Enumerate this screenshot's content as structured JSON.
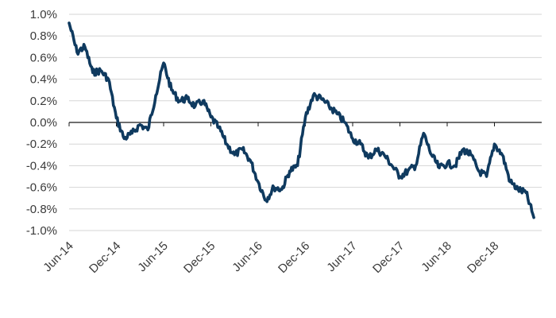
{
  "chart_data": {
    "type": "line",
    "title": "",
    "xlabel": "",
    "ylabel": "",
    "ylim": [
      -0.01,
      0.01
    ],
    "grid": true,
    "legend": "none",
    "y_tick_values": [
      0.01,
      0.008,
      0.006,
      0.004,
      0.002,
      0.0,
      -0.002,
      -0.004,
      -0.006,
      -0.008,
      -0.01
    ],
    "y_tick_labels": [
      "1.0%",
      "0.8%",
      "0.6%",
      "0.4%",
      "0.2%",
      "0.0%",
      "-0.2%",
      "-0.4%",
      "-0.6%",
      "-0.8%",
      "-1.0%"
    ],
    "x_tick_values": [
      "2014-06",
      "2014-12",
      "2015-06",
      "2015-12",
      "2016-06",
      "2016-12",
      "2017-06",
      "2017-12",
      "2018-06",
      "2018-12"
    ],
    "x_tick_labels": [
      "Jun-14",
      "Dec-14",
      "Jun-15",
      "Dec-15",
      "Jun-16",
      "Dec-16",
      "Jun-17",
      "Dec-17",
      "Jun-18",
      "Dec-18"
    ],
    "x_range": [
      "2014-06",
      "2019-06"
    ],
    "colors": {
      "series": "#0f3a5f",
      "grid": "#d6d6d6",
      "axis": "#1a1a1a"
    },
    "series": [
      {
        "x": [
          "2014-06",
          "2014-07",
          "2014-08",
          "2014-09",
          "2014-10",
          "2014-11",
          "2014-12",
          "2015-01",
          "2015-02",
          "2015-03",
          "2015-04",
          "2015-05",
          "2015-06",
          "2015-07",
          "2015-08",
          "2015-09",
          "2015-10",
          "2015-11",
          "2015-12",
          "2016-01",
          "2016-02",
          "2016-03",
          "2016-04",
          "2016-05",
          "2016-06",
          "2016-07",
          "2016-08",
          "2016-09",
          "2016-10",
          "2016-11",
          "2016-12",
          "2017-01",
          "2017-02",
          "2017-03",
          "2017-04",
          "2017-05",
          "2017-06",
          "2017-07",
          "2017-08",
          "2017-09",
          "2017-10",
          "2017-11",
          "2017-12",
          "2018-01",
          "2018-02",
          "2018-03",
          "2018-04",
          "2018-05",
          "2018-06",
          "2018-07",
          "2018-08",
          "2018-09",
          "2018-10",
          "2018-11",
          "2018-12",
          "2019-01",
          "2019-02",
          "2019-03",
          "2019-04",
          "2019-05"
        ],
        "values": [
          0.0092,
          0.0065,
          0.007,
          0.0046,
          0.0048,
          0.004,
          0.0004,
          -0.0015,
          -0.001,
          -0.0002,
          -0.0007,
          0.0025,
          0.0055,
          0.003,
          0.002,
          0.0022,
          0.0015,
          0.002,
          0.0005,
          -0.0005,
          -0.002,
          -0.003,
          -0.0025,
          -0.0035,
          -0.0055,
          -0.0072,
          -0.006,
          -0.0062,
          -0.0045,
          -0.004,
          0.0005,
          0.0025,
          0.0022,
          0.0015,
          0.0008,
          0.0,
          -0.0015,
          -0.002,
          -0.0033,
          -0.0025,
          -0.003,
          -0.004,
          -0.005,
          -0.0045,
          -0.004,
          -0.001,
          -0.003,
          -0.0042,
          -0.0038,
          -0.004,
          -0.0025,
          -0.003,
          -0.0045,
          -0.005,
          -0.002,
          -0.003,
          -0.0055,
          -0.0062,
          -0.0065,
          -0.0088
        ]
      }
    ]
  }
}
